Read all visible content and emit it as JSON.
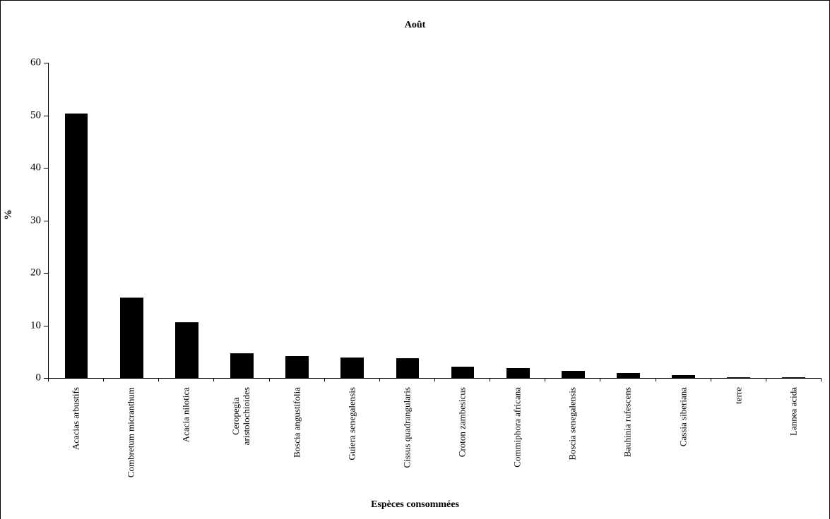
{
  "chart_data": {
    "type": "bar",
    "title": "Août",
    "xlabel": "Espèces consommées",
    "ylabel": "%",
    "ylim": [
      0,
      60
    ],
    "ytick_step": 10,
    "grid": false,
    "legend": "none",
    "bar_color": "#000000",
    "background_color": "#ffffff",
    "categories": [
      "Acacias arbustifs",
      "Combretum micranthum",
      "Acacia nilotica",
      "Ceropegia\naristolochioides",
      "Boscia angustifolia",
      "Guiera senegalensis",
      "Cissus quadrangularis",
      "Croton zambesicus",
      "Commiphora africana",
      "Boscia senegalensis",
      "Bauhinia rufescens",
      "Cassia siberiana",
      "terre",
      "Lannea acida"
    ],
    "values": [
      50.3,
      15.3,
      10.6,
      4.7,
      4.2,
      3.9,
      3.8,
      2.2,
      1.9,
      1.3,
      0.9,
      0.5,
      0.2,
      0.2
    ]
  }
}
